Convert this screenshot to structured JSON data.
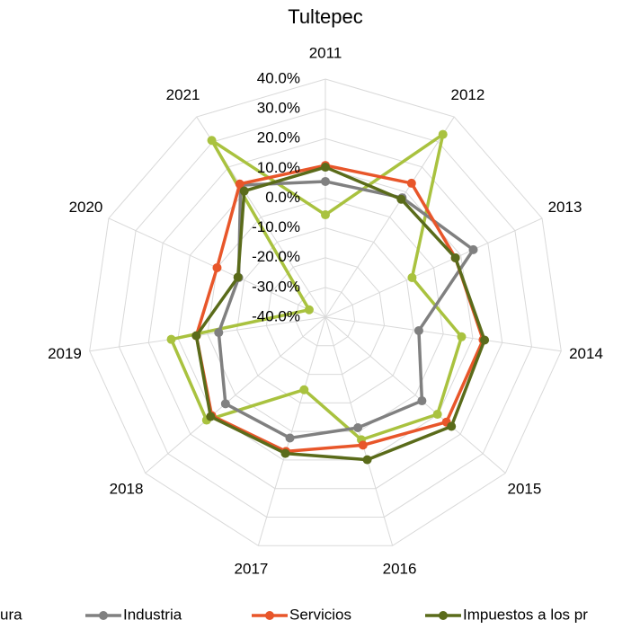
{
  "chart_data": {
    "type": "radar",
    "title": "Tultepec",
    "categories": [
      "2011",
      "2012",
      "2013",
      "2014",
      "2015",
      "2016",
      "2017",
      "2018",
      "2019",
      "2020",
      "2021"
    ],
    "ylim": [
      -40,
      40
    ],
    "yticks": [
      {
        "value": -40,
        "label": "-40.0%"
      },
      {
        "value": -30,
        "label": "-30.0%"
      },
      {
        "value": -20,
        "label": "-20.0%"
      },
      {
        "value": -10,
        "label": "-10.0%"
      },
      {
        "value": 0,
        "label": "0.0%"
      },
      {
        "value": 10,
        "label": "10.0%"
      },
      {
        "value": 20,
        "label": "20.0%"
      },
      {
        "value": 30,
        "label": "30.0%"
      },
      {
        "value": 40,
        "label": "40.0%"
      }
    ],
    "grid": true,
    "series": [
      {
        "name": "ura",
        "color": "#a9c23f",
        "values": [
          -5.6,
          33,
          -8,
          6.2,
          9.8,
          2.9,
          -14.6,
          12.8,
          12.3,
          -34,
          30.6
        ]
      },
      {
        "name": "Industria",
        "color": "#808080",
        "values": [
          5.6,
          7.7,
          14.6,
          -8.3,
          2.9,
          -1.3,
          2.3,
          4.4,
          -3.8,
          -8,
          12.7
        ]
      },
      {
        "name": "Servicios",
        "color": "#e8562a",
        "values": [
          11,
          13.5,
          8,
          13.5,
          13.8,
          4.8,
          7,
          10.5,
          3.8,
          0,
          13.2
        ]
      },
      {
        "name": "Impuestos a los pr",
        "color": "#5a6b1a",
        "values": [
          10.4,
          7.1,
          8,
          14,
          16,
          9.9,
          7.7,
          11,
          3.8,
          -7.7,
          10.4
        ]
      }
    ]
  }
}
